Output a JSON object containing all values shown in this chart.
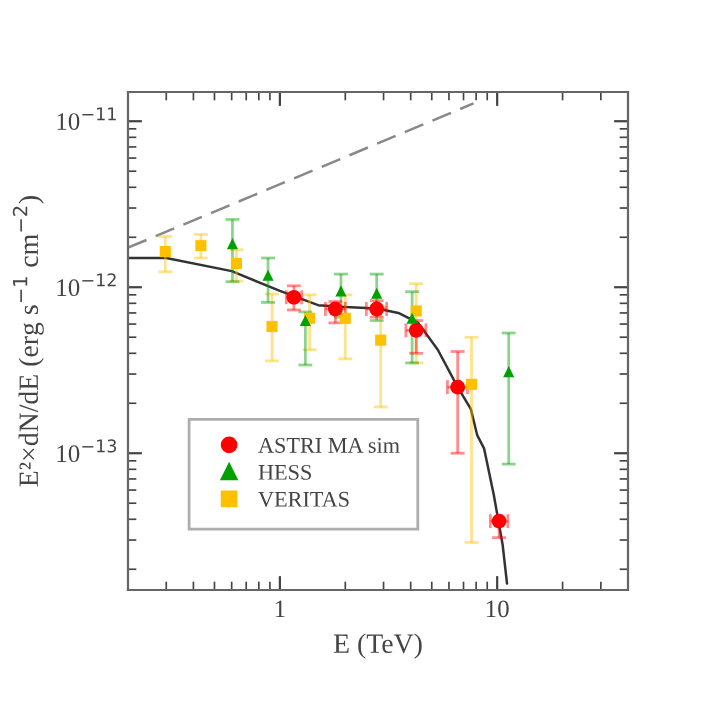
{
  "chart_data": {
    "type": "scatter",
    "xlabel": "E (TeV)",
    "ylabel": "E²×dN/dE (erg s$^{−1}$ cm$^{−2}$)",
    "log": "xy",
    "xlim": [
      0.2,
      40
    ],
    "ylim": [
      1.5e-14,
      1.5e-11
    ],
    "xticks": [
      1,
      10
    ],
    "yticks": [
      {
        "value": 1e-13,
        "label": "10$^{−13}$"
      },
      {
        "value": 1e-12,
        "label": "10$^{−12}$"
      },
      {
        "value": 1e-11,
        "label": "10$^{−11}$"
      }
    ],
    "grid": false,
    "legend": "bottom left",
    "series": [
      {
        "type": "line",
        "color": "#888888",
        "line_style": "dashed",
        "marker": "none",
        "x": [
          0.2,
          7.78
        ],
        "values": [
          1.73e-12,
          1.28e-11
        ]
      },
      {
        "type": "line",
        "color": "#333333",
        "line_style": "solid",
        "marker": "none",
        "x": [
          0.2,
          0.3,
          0.6,
          1.0,
          1.5,
          2.0,
          2.8,
          3.51,
          4.33,
          5.33,
          6.58,
          7.56,
          8.1,
          8.7,
          9.65,
          10.6,
          11.1
        ],
        "values": [
          1.5e-12,
          1.5e-12,
          1.25e-12,
          9.5e-13,
          7.8e-13,
          7.6e-13,
          7.45e-13,
          7e-13,
          6.1e-13,
          4.2e-13,
          2.5e-13,
          1.85e-13,
          1.28e-13,
          1.07e-13,
          5.6e-14,
          2.8e-14,
          1.64e-14
        ]
      },
      {
        "name": "VERITAS",
        "color": "#ffc000",
        "marker": "square",
        "x": [
          0.297,
          0.433,
          0.631,
          0.92,
          1.37,
          2.0,
          2.91,
          4.24,
          7.62
        ],
        "values": [
          1.64e-12,
          1.78e-12,
          1.39e-12,
          5.8e-13,
          6.5e-13,
          6.5e-13,
          4.8e-13,
          7.2e-13,
          2.6e-13
        ],
        "errors": [
          [
            1.24e-12,
            2.02e-12
          ],
          [
            1.5e-12,
            2.08e-12
          ],
          [
            1.09e-12,
            1.68e-12
          ],
          [
            3.6e-13,
            9.1e-13
          ],
          [
            4.2e-13,
            9e-13
          ],
          [
            3.7e-13,
            9e-13
          ],
          [
            1.9e-13,
            7.6e-13
          ],
          [
            3.5e-13,
            1.05e-12
          ],
          [
            2.9e-14,
            5e-13
          ]
        ]
      },
      {
        "name": "HESS",
        "color": "#00a000",
        "marker": "triangle",
        "x": [
          0.605,
          0.882,
          1.31,
          1.91,
          2.79,
          4.06,
          6.4,
          11.3
        ],
        "values": [
          1.83e-12,
          1.18e-12,
          6.3e-13,
          9.5e-13,
          9.2e-13,
          6.5e-13,
          null,
          3.1e-13
        ],
        "errors": [
          [
            1.08e-12,
            2.56e-12
          ],
          [
            8.1e-13,
            1.5e-12
          ],
          [
            3.4e-13,
            7.1e-13
          ],
          [
            6.6e-13,
            1.2e-12
          ],
          [
            6.3e-13,
            1.2e-12
          ],
          [
            3.5e-13,
            9.4e-13
          ],
          null,
          [
            8.6e-14,
            5.3e-13
          ]
        ]
      },
      {
        "name": "ASTRI MA sim",
        "color": "#ff0000",
        "marker": "circle",
        "x": [
          1.16,
          1.8,
          2.79,
          4.24,
          6.58,
          10.2
        ],
        "values": [
          8.7e-13,
          7.4e-13,
          7.4e-13,
          5.5e-13,
          2.5e-13,
          3.9e-14
        ],
        "errors": [
          [
            7.3e-13,
            1.02e-12
          ],
          [
            6.1e-13,
            8.2e-13
          ],
          [
            6.6e-13,
            8.3e-13
          ],
          [
            4e-13,
            6.3e-13
          ],
          [
            1e-13,
            4.1e-13
          ],
          [
            3.1e-14,
            3.9e-14
          ]
        ],
        "xerrors": [
          [
            1.07,
            1.26
          ],
          [
            1.62,
            2.0
          ],
          [
            2.5,
            3.1
          ],
          [
            3.8,
            4.7
          ],
          [
            5.9,
            7.3
          ],
          [
            9.3,
            11.2
          ]
        ]
      }
    ]
  }
}
